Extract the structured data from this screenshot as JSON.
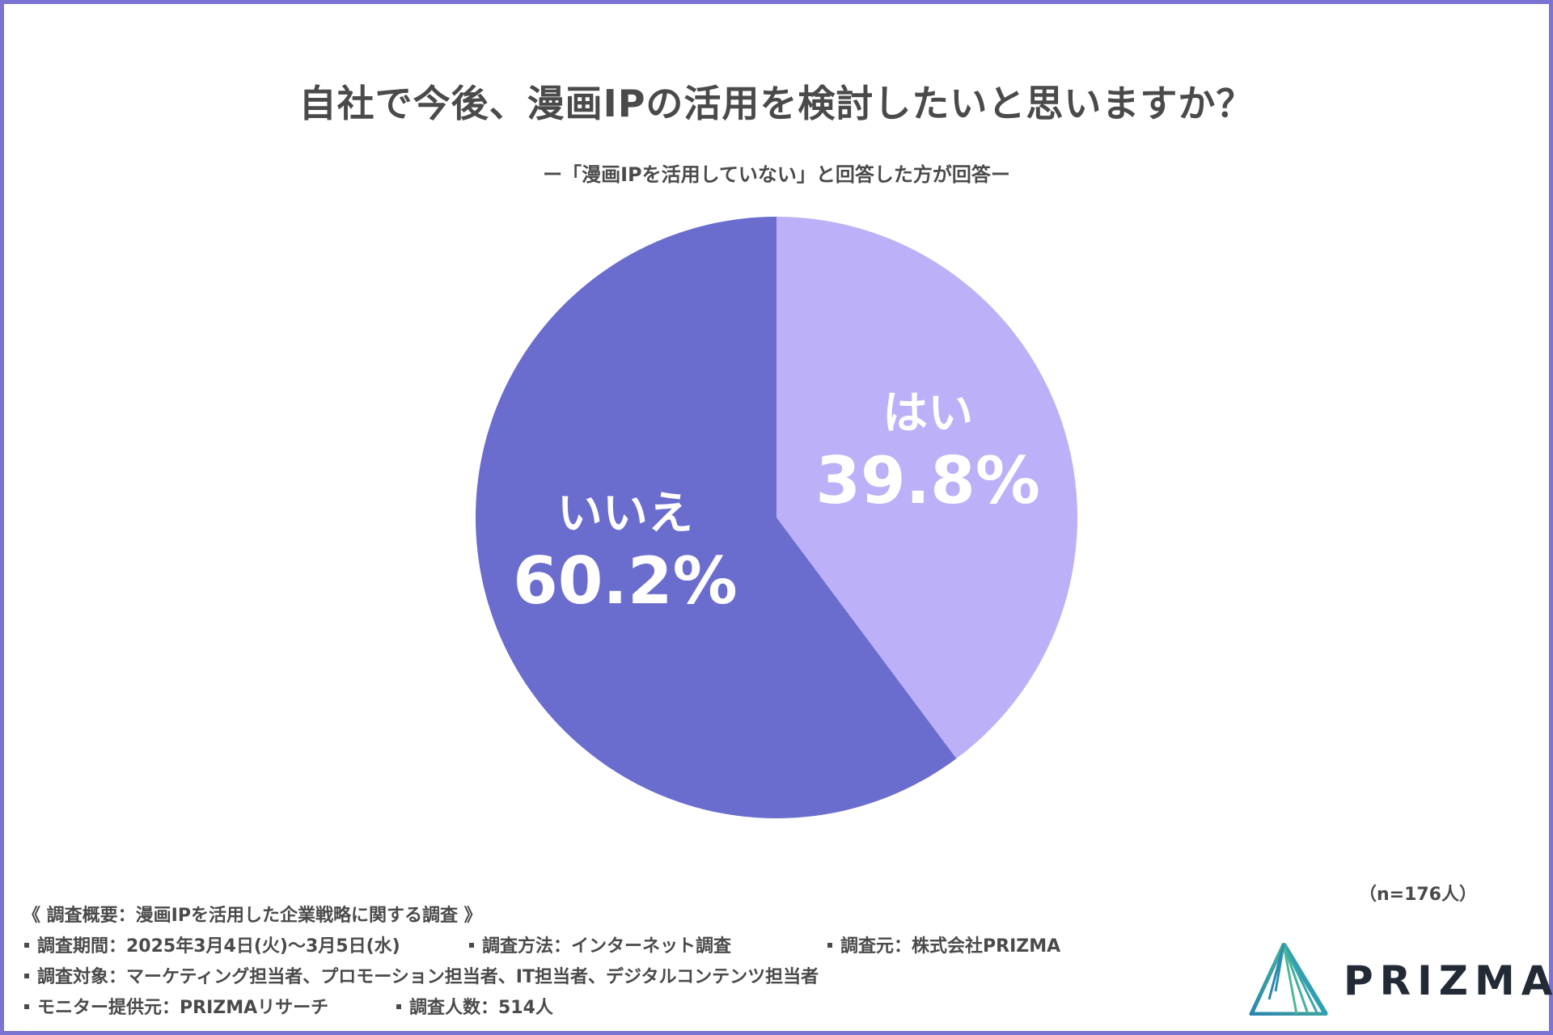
{
  "title": "自社で今後、漫画IPの活用を検討したいと思いますか？",
  "subtitle": "ー「漫画IPを活用していない」と回答した方が回答ー",
  "sample_size": "（n=176人）",
  "chart_data": {
    "type": "pie",
    "title": "自社で今後、漫画IPの活用を検討したいと思いますか？",
    "slices": [
      {
        "label": "はい",
        "value": 39.8,
        "value_label": "39.8%",
        "color": "#bcb0f9"
      },
      {
        "label": "いいえ",
        "value": 60.2,
        "value_label": "60.2%",
        "color": "#6a6dcd"
      }
    ],
    "start": "12 o'clock",
    "direction": "clockwise"
  },
  "footer": {
    "heading": "《 調査概要：漫画IPを活用した企業戦略に関する調査 》",
    "period": "調査期間：2025年3月4日(火)〜3月5日(水)",
    "method": "調査方法：インターネット調査",
    "source": "調査元：株式会社PRIZMA",
    "target": "調査対象：マーケティング担当者、プロモーション担当者、IT担当者、デジタルコンテンツ担当者",
    "monitor": "モニター提供元：PRIZMAリサーチ",
    "respondents": "調査人数：514人"
  },
  "logo": {
    "text": "PRIZMA",
    "icon": "prism-triangle-icon"
  },
  "colors": {
    "frame": "#7b74d2",
    "text": "#4a4a4a"
  }
}
